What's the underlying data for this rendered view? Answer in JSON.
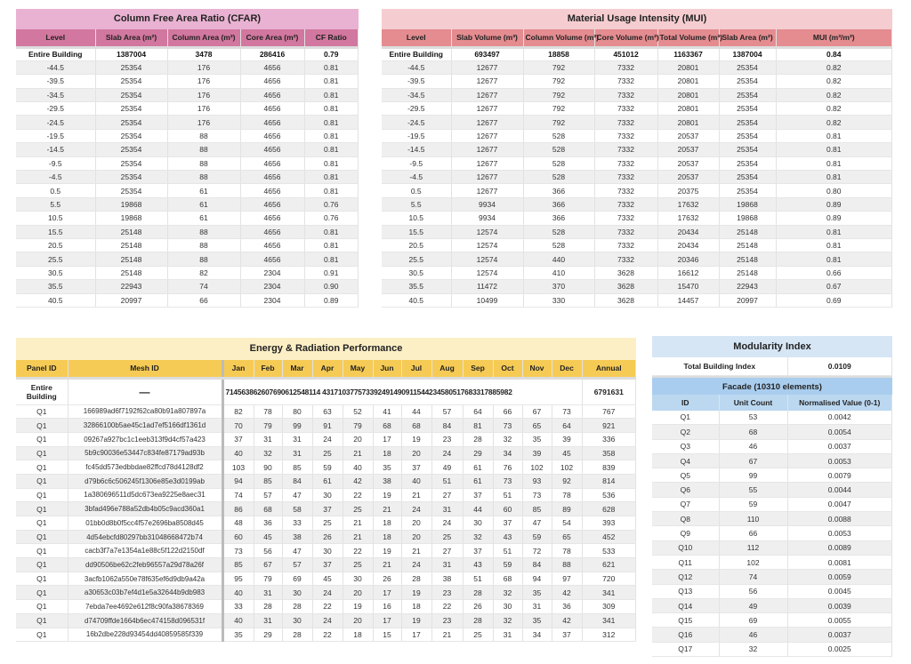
{
  "cfar": {
    "title": "Column Free Area Ratio (CFAR)",
    "columns": [
      "Level",
      "Slab Area (m²)",
      "Column Area (m²)",
      "Core Area (m²)",
      "CF Ratio"
    ],
    "total": [
      "Entire Building",
      "1387004",
      "3478",
      "286416",
      "0.79"
    ],
    "rows": [
      [
        "-44.5",
        "25354",
        "176",
        "4656",
        "0.81"
      ],
      [
        "-39.5",
        "25354",
        "176",
        "4656",
        "0.81"
      ],
      [
        "-34.5",
        "25354",
        "176",
        "4656",
        "0.81"
      ],
      [
        "-29.5",
        "25354",
        "176",
        "4656",
        "0.81"
      ],
      [
        "-24.5",
        "25354",
        "176",
        "4656",
        "0.81"
      ],
      [
        "-19.5",
        "25354",
        "88",
        "4656",
        "0.81"
      ],
      [
        "-14.5",
        "25354",
        "88",
        "4656",
        "0.81"
      ],
      [
        "-9.5",
        "25354",
        "88",
        "4656",
        "0.81"
      ],
      [
        "-4.5",
        "25354",
        "88",
        "4656",
        "0.81"
      ],
      [
        "0.5",
        "25354",
        "61",
        "4656",
        "0.81"
      ],
      [
        "5.5",
        "19868",
        "61",
        "4656",
        "0.76"
      ],
      [
        "10.5",
        "19868",
        "61",
        "4656",
        "0.76"
      ],
      [
        "15.5",
        "25148",
        "88",
        "4656",
        "0.81"
      ],
      [
        "20.5",
        "25148",
        "88",
        "4656",
        "0.81"
      ],
      [
        "25.5",
        "25148",
        "88",
        "4656",
        "0.81"
      ],
      [
        "30.5",
        "25148",
        "82",
        "2304",
        "0.91"
      ],
      [
        "35.5",
        "22943",
        "74",
        "2304",
        "0.90"
      ],
      [
        "40.5",
        "20997",
        "66",
        "2304",
        "0.89"
      ]
    ]
  },
  "mui": {
    "title": "Material Usage Intensity (MUI)",
    "columns": [
      "Level",
      "Slab Volume (m³)",
      "Column Volume (m³)",
      "Core Volume (m³)",
      "Total Volume (m³)",
      "Slab Area (m²)",
      "MUI (m³/m²)"
    ],
    "total": [
      "Entire Building",
      "693497",
      "18858",
      "451012",
      "1163367",
      "1387004",
      "0.84"
    ],
    "rows": [
      [
        "-44.5",
        "12677",
        "792",
        "7332",
        "20801",
        "25354",
        "0.82"
      ],
      [
        "-39.5",
        "12677",
        "792",
        "7332",
        "20801",
        "25354",
        "0.82"
      ],
      [
        "-34.5",
        "12677",
        "792",
        "7332",
        "20801",
        "25354",
        "0.82"
      ],
      [
        "-29.5",
        "12677",
        "792",
        "7332",
        "20801",
        "25354",
        "0.82"
      ],
      [
        "-24.5",
        "12677",
        "792",
        "7332",
        "20801",
        "25354",
        "0.82"
      ],
      [
        "-19.5",
        "12677",
        "528",
        "7332",
        "20537",
        "25354",
        "0.81"
      ],
      [
        "-14.5",
        "12677",
        "528",
        "7332",
        "20537",
        "25354",
        "0.81"
      ],
      [
        "-9.5",
        "12677",
        "528",
        "7332",
        "20537",
        "25354",
        "0.81"
      ],
      [
        "-4.5",
        "12677",
        "528",
        "7332",
        "20537",
        "25354",
        "0.81"
      ],
      [
        "0.5",
        "12677",
        "366",
        "7332",
        "20375",
        "25354",
        "0.80"
      ],
      [
        "5.5",
        "9934",
        "366",
        "7332",
        "17632",
        "19868",
        "0.89"
      ],
      [
        "10.5",
        "9934",
        "366",
        "7332",
        "17632",
        "19868",
        "0.89"
      ],
      [
        "15.5",
        "12574",
        "528",
        "7332",
        "20434",
        "25148",
        "0.81"
      ],
      [
        "20.5",
        "12574",
        "528",
        "7332",
        "20434",
        "25148",
        "0.81"
      ],
      [
        "25.5",
        "12574",
        "440",
        "7332",
        "20346",
        "25148",
        "0.81"
      ],
      [
        "30.5",
        "12574",
        "410",
        "3628",
        "16612",
        "25148",
        "0.66"
      ],
      [
        "35.5",
        "11472",
        "370",
        "3628",
        "15470",
        "22943",
        "0.67"
      ],
      [
        "40.5",
        "10499",
        "330",
        "3628",
        "14457",
        "20997",
        "0.69"
      ]
    ]
  },
  "energy": {
    "title": "Energy & Radiation Performance",
    "entire_label": "Entire Building",
    "entire_mesh": "—",
    "entire_monthly": "714563862607690612548114 431710377573392491490911544234580517683317885982",
    "entire_annual": "6791631",
    "columns": [
      "Panel ID",
      "Mesh ID",
      "Jan",
      "Feb",
      "Mar",
      "Apr",
      "May",
      "Jun",
      "Jul",
      "Aug",
      "Sep",
      "Oct",
      "Nov",
      "Dec",
      "Annual"
    ],
    "rows": [
      [
        "Q1",
        "166989ad6f7192f62ca80b91a807897a",
        "82",
        "78",
        "80",
        "63",
        "52",
        "41",
        "44",
        "57",
        "64",
        "66",
        "67",
        "73",
        "767"
      ],
      [
        "Q1",
        "32866100b5ae45c1ad7ef5166df1361d",
        "70",
        "79",
        "99",
        "91",
        "79",
        "68",
        "68",
        "84",
        "81",
        "73",
        "65",
        "64",
        "921"
      ],
      [
        "Q1",
        "09267a927bc1c1eeb313f9d4cf57a423",
        "37",
        "31",
        "31",
        "24",
        "20",
        "17",
        "19",
        "23",
        "28",
        "32",
        "35",
        "39",
        "336"
      ],
      [
        "Q1",
        "5b9c90036e53447c834fe87179ad93b",
        "40",
        "32",
        "31",
        "25",
        "21",
        "18",
        "20",
        "24",
        "29",
        "34",
        "39",
        "45",
        "358"
      ],
      [
        "Q1",
        "fc45dd573edbbdae82ffcd78d4128df2",
        "103",
        "90",
        "85",
        "59",
        "40",
        "35",
        "37",
        "49",
        "61",
        "76",
        "102",
        "102",
        "839"
      ],
      [
        "Q1",
        "d79b6c6c506245f1306e85e3d0199ab",
        "94",
        "85",
        "84",
        "61",
        "42",
        "38",
        "40",
        "51",
        "61",
        "73",
        "93",
        "92",
        "814"
      ],
      [
        "Q1",
        "1a380696511d5dc673ea9225e8aec31",
        "74",
        "57",
        "47",
        "30",
        "22",
        "19",
        "21",
        "27",
        "37",
        "51",
        "73",
        "78",
        "536"
      ],
      [
        "Q1",
        "3bfad496e788a52db4b05c9acd360a1",
        "86",
        "68",
        "58",
        "37",
        "25",
        "21",
        "24",
        "31",
        "44",
        "60",
        "85",
        "89",
        "628"
      ],
      [
        "Q1",
        "01bb0d8b0f5cc4f57e2696ba8508d45",
        "48",
        "36",
        "33",
        "25",
        "21",
        "18",
        "20",
        "24",
        "30",
        "37",
        "47",
        "54",
        "393"
      ],
      [
        "Q1",
        "4d54ebcfd80297bb31048668472b74",
        "60",
        "45",
        "38",
        "26",
        "21",
        "18",
        "20",
        "25",
        "32",
        "43",
        "59",
        "65",
        "452"
      ],
      [
        "Q1",
        "cacb3f7a7e1354a1e88c5f122d2150df",
        "73",
        "56",
        "47",
        "30",
        "22",
        "19",
        "21",
        "27",
        "37",
        "51",
        "72",
        "78",
        "533"
      ],
      [
        "Q1",
        "dd90506be62c2feb96557a29d78a26f",
        "85",
        "67",
        "57",
        "37",
        "25",
        "21",
        "24",
        "31",
        "43",
        "59",
        "84",
        "88",
        "621"
      ],
      [
        "Q1",
        "3acfb1062a550e78f635ef6d9db9a42a",
        "95",
        "79",
        "69",
        "45",
        "30",
        "26",
        "28",
        "38",
        "51",
        "68",
        "94",
        "97",
        "720"
      ],
      [
        "Q1",
        "a30653c03b7ef4d1e5a32644b9db983",
        "40",
        "31",
        "30",
        "24",
        "20",
        "17",
        "19",
        "23",
        "28",
        "32",
        "35",
        "42",
        "341"
      ],
      [
        "Q1",
        "7ebda7ee4692e612f8c90fa38678369",
        "33",
        "28",
        "28",
        "22",
        "19",
        "16",
        "18",
        "22",
        "26",
        "30",
        "31",
        "36",
        "309"
      ],
      [
        "Q1",
        "d74709ffde1664b6ec474158d096531f",
        "40",
        "31",
        "30",
        "24",
        "20",
        "17",
        "19",
        "23",
        "28",
        "32",
        "35",
        "42",
        "341"
      ],
      [
        "Q1",
        "16b2dbe228d93454dd40859585f339",
        "35",
        "29",
        "28",
        "22",
        "18",
        "15",
        "17",
        "21",
        "25",
        "31",
        "34",
        "37",
        "312"
      ]
    ]
  },
  "modularity": {
    "title": "Modularity Index",
    "total_label": "Total Building Index",
    "total_value": "0.0109",
    "facade_label": "Facade  (10310 elements)",
    "columns": [
      "ID",
      "Unit Count",
      "Normalised Value (0-1)"
    ],
    "rows": [
      [
        "Q1",
        "53",
        "0.0042"
      ],
      [
        "Q2",
        "68",
        "0.0054"
      ],
      [
        "Q3",
        "46",
        "0.0037"
      ],
      [
        "Q4",
        "67",
        "0.0053"
      ],
      [
        "Q5",
        "99",
        "0.0079"
      ],
      [
        "Q6",
        "55",
        "0.0044"
      ],
      [
        "Q7",
        "59",
        "0.0047"
      ],
      [
        "Q8",
        "110",
        "0.0088"
      ],
      [
        "Q9",
        "66",
        "0.0053"
      ],
      [
        "Q10",
        "112",
        "0.0089"
      ],
      [
        "Q11",
        "102",
        "0.0081"
      ],
      [
        "Q12",
        "74",
        "0.0059"
      ],
      [
        "Q13",
        "56",
        "0.0045"
      ],
      [
        "Q14",
        "49",
        "0.0039"
      ],
      [
        "Q15",
        "69",
        "0.0055"
      ],
      [
        "Q16",
        "46",
        "0.0037"
      ],
      [
        "Q17",
        "32",
        "0.0025"
      ]
    ]
  }
}
